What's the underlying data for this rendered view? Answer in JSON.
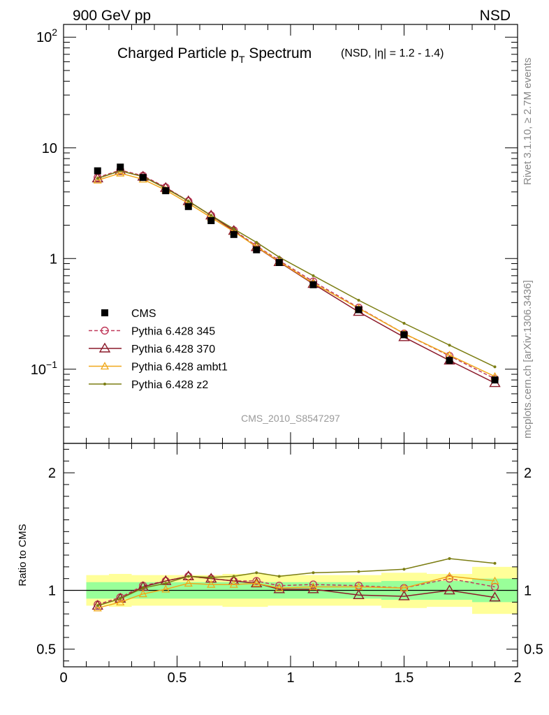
{
  "header": {
    "energy_label": "900 GeV pp",
    "process_label": "NSD",
    "title_main": "Charged Particle p",
    "title_sub": "T",
    "title_tail": " Spectrum",
    "title_note": "(NSD, |η| = 1.2 - 1.4)"
  },
  "side": {
    "rivet_label": "Rivet 3.1.10, ≥ 2.7M events",
    "source_label": "mcplots.cern.ch [arXiv:1306.3436]"
  },
  "analysis_label": "CMS_2010_S8547297",
  "colors": {
    "cms": "#000000",
    "p345": "#c0395a",
    "p370": "#8b1a2a",
    "ambt1": "#f0a81c",
    "z2": "#7b7d12",
    "band_inner": "#99ff99",
    "band_outer": "#ffff99"
  },
  "chart_data": [
    {
      "type": "line",
      "title": "Charged Particle pT Spectrum (NSD, |η| = 1.2 - 1.4)",
      "xlabel": "",
      "ylabel": "",
      "xlim": [
        0,
        2
      ],
      "ylim": [
        0.02,
        130
      ],
      "yscale": "log",
      "y_ticks": [
        {
          "value": 0.1,
          "base": "10",
          "exp": "−1"
        },
        {
          "value": 1,
          "base": "1",
          "exp": ""
        },
        {
          "value": 10,
          "base": "10",
          "exp": ""
        },
        {
          "value": 100,
          "base": "10",
          "exp": "2"
        }
      ],
      "legend_position": "middle-left",
      "x": [
        0.15,
        0.25,
        0.35,
        0.45,
        0.55,
        0.65,
        0.75,
        0.85,
        0.95,
        1.1,
        1.3,
        1.5,
        1.7,
        1.9
      ],
      "series": [
        {
          "name": "CMS",
          "key": "cms",
          "marker": "square",
          "values": [
            6.2,
            6.7,
            5.4,
            4.1,
            2.95,
            2.2,
            1.65,
            1.2,
            0.92,
            0.58,
            0.345,
            0.205,
            0.12,
            0.08
          ]
        },
        {
          "name": "Pythia 6.428 345",
          "key": "p345",
          "marker": "circle",
          "dash": true,
          "values": [
            5.4,
            6.3,
            5.6,
            4.4,
            3.3,
            2.45,
            1.8,
            1.3,
            0.96,
            0.62,
            0.36,
            0.21,
            0.132,
            0.082
          ]
        },
        {
          "name": "Pythia 6.428 370",
          "key": "p370",
          "marker": "triangle",
          "values": [
            5.3,
            6.2,
            5.5,
            4.35,
            3.3,
            2.45,
            1.78,
            1.27,
            0.93,
            0.59,
            0.33,
            0.195,
            0.12,
            0.075
          ]
        },
        {
          "name": "Pythia 6.428 ambt1",
          "key": "ambt1",
          "marker": "triangle-small",
          "values": [
            5.1,
            5.9,
            5.2,
            4.15,
            3.15,
            2.35,
            1.75,
            1.28,
            0.94,
            0.6,
            0.355,
            0.21,
            0.134,
            0.086
          ]
        },
        {
          "name": "Pythia 6.428 z2",
          "key": "z2",
          "marker": "dot",
          "values": [
            5.3,
            6.2,
            5.5,
            4.3,
            3.3,
            2.45,
            1.85,
            1.4,
            1.03,
            0.7,
            0.42,
            0.26,
            0.165,
            0.105
          ]
        }
      ]
    },
    {
      "type": "line",
      "xlabel": "",
      "ylabel": "Ratio to CMS",
      "xlim": [
        0,
        2
      ],
      "ylim": [
        0.35,
        2.25
      ],
      "y_ticks": [
        0.5,
        1,
        2
      ],
      "x_ticks": [
        0,
        0.5,
        1,
        1.5,
        2
      ],
      "x": [
        0.15,
        0.25,
        0.35,
        0.45,
        0.55,
        0.65,
        0.75,
        0.85,
        0.95,
        1.1,
        1.3,
        1.5,
        1.7,
        1.9
      ],
      "bands": [
        {
          "lo": 0.1,
          "hi": 0.2,
          "inner": [
            0.93,
            1.07
          ],
          "outer": [
            0.87,
            1.13
          ]
        },
        {
          "lo": 0.2,
          "hi": 0.3,
          "inner": [
            0.93,
            1.07
          ],
          "outer": [
            0.86,
            1.14
          ]
        },
        {
          "lo": 0.3,
          "hi": 0.4,
          "inner": [
            0.93,
            1.07
          ],
          "outer": [
            0.87,
            1.13
          ]
        },
        {
          "lo": 0.4,
          "hi": 0.5,
          "inner": [
            0.93,
            1.07
          ],
          "outer": [
            0.87,
            1.13
          ]
        },
        {
          "lo": 0.5,
          "hi": 0.6,
          "inner": [
            0.93,
            1.07
          ],
          "outer": [
            0.87,
            1.13
          ]
        },
        {
          "lo": 0.6,
          "hi": 0.7,
          "inner": [
            0.93,
            1.07
          ],
          "outer": [
            0.87,
            1.13
          ]
        },
        {
          "lo": 0.7,
          "hi": 0.8,
          "inner": [
            0.93,
            1.07
          ],
          "outer": [
            0.86,
            1.14
          ]
        },
        {
          "lo": 0.8,
          "hi": 0.9,
          "inner": [
            0.93,
            1.07
          ],
          "outer": [
            0.86,
            1.14
          ]
        },
        {
          "lo": 0.9,
          "hi": 1.0,
          "inner": [
            0.93,
            1.07
          ],
          "outer": [
            0.87,
            1.13
          ]
        },
        {
          "lo": 1.0,
          "hi": 1.2,
          "inner": [
            0.93,
            1.07
          ],
          "outer": [
            0.87,
            1.13
          ]
        },
        {
          "lo": 1.2,
          "hi": 1.4,
          "inner": [
            0.93,
            1.07
          ],
          "outer": [
            0.87,
            1.13
          ]
        },
        {
          "lo": 1.4,
          "hi": 1.6,
          "inner": [
            0.92,
            1.08
          ],
          "outer": [
            0.85,
            1.15
          ]
        },
        {
          "lo": 1.6,
          "hi": 1.8,
          "inner": [
            0.92,
            1.08
          ],
          "outer": [
            0.86,
            1.14
          ]
        },
        {
          "lo": 1.8,
          "hi": 2.0,
          "inner": [
            0.9,
            1.1
          ],
          "outer": [
            0.8,
            1.2
          ]
        }
      ],
      "series": [
        {
          "name": "Pythia 6.428 345",
          "key": "p345",
          "marker": "circle",
          "dash": true,
          "values": [
            0.88,
            0.94,
            1.04,
            1.08,
            1.12,
            1.1,
            1.08,
            1.08,
            1.04,
            1.05,
            1.04,
            1.02,
            1.1,
            1.03
          ]
        },
        {
          "name": "Pythia 6.428 370",
          "key": "p370",
          "marker": "triangle",
          "values": [
            0.87,
            0.93,
            1.03,
            1.08,
            1.12,
            1.1,
            1.08,
            1.06,
            1.01,
            1.01,
            0.96,
            0.95,
            1.0,
            0.94
          ]
        },
        {
          "name": "Pythia 6.428 ambt1",
          "key": "ambt1",
          "marker": "triangle-small",
          "values": [
            0.85,
            0.9,
            0.97,
            1.01,
            1.06,
            1.05,
            1.05,
            1.06,
            1.02,
            1.03,
            1.03,
            1.02,
            1.12,
            1.08
          ]
        },
        {
          "name": "Pythia 6.428 z2",
          "key": "z2",
          "marker": "dot",
          "values": [
            0.87,
            0.93,
            1.02,
            1.06,
            1.12,
            1.11,
            1.12,
            1.15,
            1.12,
            1.15,
            1.16,
            1.18,
            1.27,
            1.23
          ]
        }
      ]
    }
  ]
}
